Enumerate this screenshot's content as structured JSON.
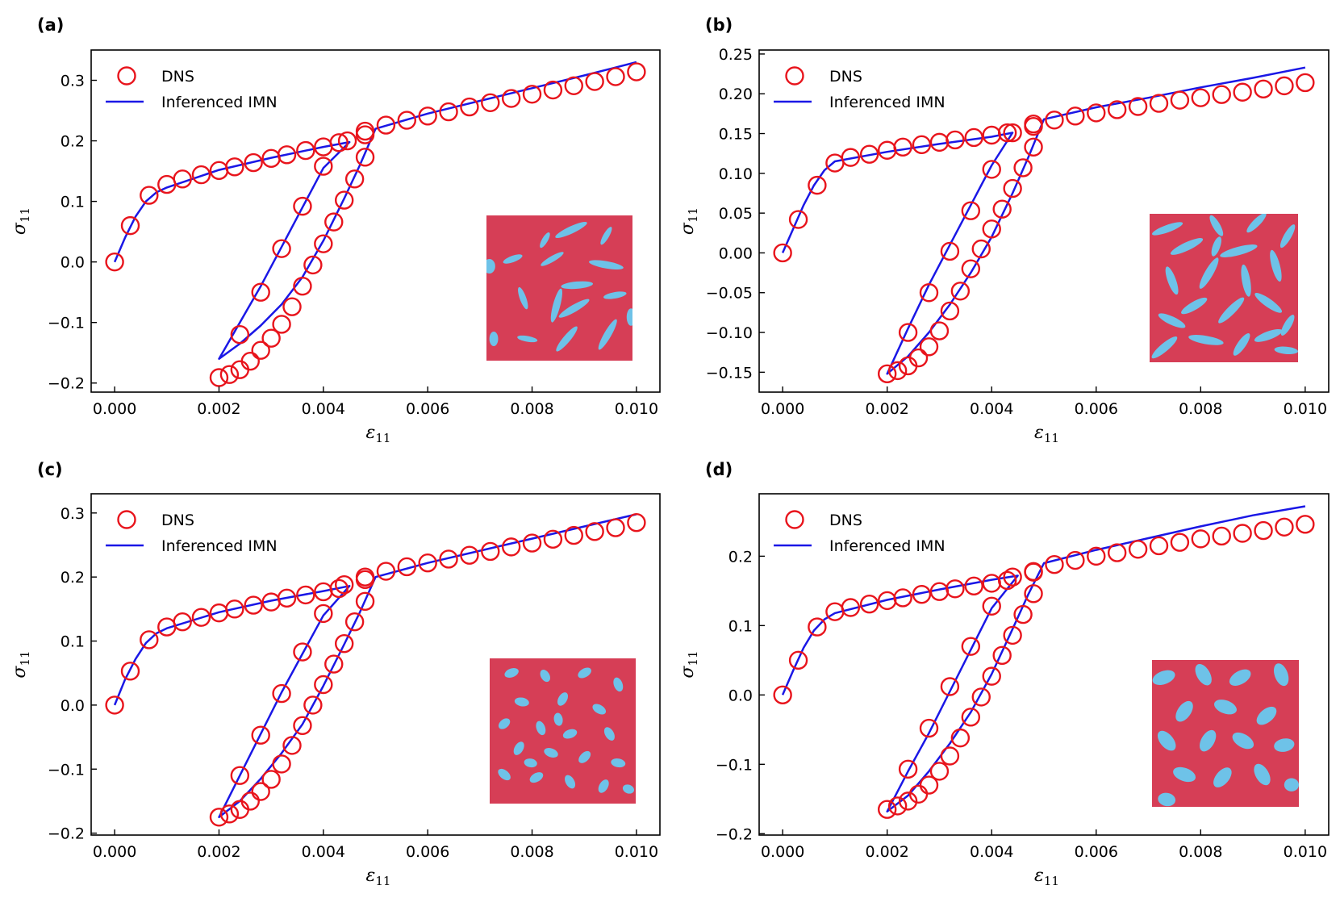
{
  "figure": {
    "colors": {
      "dns": "#e8141c",
      "imn": "#1a17e6",
      "matrix": "#d63e56",
      "inclusion": "#6ec2e8"
    }
  },
  "chart_data": [
    {
      "panel_label": "(a)",
      "type": "line",
      "xlabel": "ε",
      "xlabel_sub": "11",
      "ylabel": "σ",
      "ylabel_sub": "11",
      "xlim": [
        -0.00045,
        0.01045
      ],
      "ylim": [
        -0.215,
        0.35
      ],
      "xticks": [
        0,
        0.002,
        0.004,
        0.006,
        0.008,
        0.01
      ],
      "xtick_labels": [
        "0.000",
        "0.002",
        "0.004",
        "0.006",
        "0.008",
        "0.010"
      ],
      "yticks": [
        -0.2,
        -0.1,
        0.0,
        0.1,
        0.2,
        0.3
      ],
      "ytick_labels": [
        "−0.2",
        "−0.1",
        "0.0",
        "0.1",
        "0.2",
        "0.3"
      ],
      "legend": {
        "position": "top-left",
        "entries": [
          "DNS",
          "Inferenced IMN"
        ]
      },
      "inset": "sparse elongated ellipses",
      "series": [
        {
          "name": "DNS",
          "style": "open-circle",
          "x": [
            0,
            0.0003,
            0.00066,
            0.001,
            0.0013,
            0.00166,
            0.002,
            0.0023,
            0.00266,
            0.003,
            0.0033,
            0.00366,
            0.004,
            0.0043,
            0.0048,
            0.004,
            0.0036,
            0.0032,
            0.0028,
            0.0024,
            0.002,
            0.0022,
            0.0024,
            0.0026,
            0.0028,
            0.003,
            0.0032,
            0.0034,
            0.0036,
            0.0038,
            0.004,
            0.0042,
            0.0044,
            0.0046,
            0.0048,
            0.00446,
            0.0048,
            0.0052,
            0.0056,
            0.006,
            0.0064,
            0.0068,
            0.0072,
            0.0076,
            0.008,
            0.0084,
            0.0088,
            0.0092,
            0.0096,
            0.01
          ],
          "y": [
            0,
            0.06,
            0.11,
            0.128,
            0.137,
            0.144,
            0.151,
            0.157,
            0.164,
            0.171,
            0.177,
            0.184,
            0.19,
            0.197,
            0.21,
            0.158,
            0.092,
            0.022,
            -0.05,
            -0.12,
            -0.191,
            -0.186,
            -0.178,
            -0.164,
            -0.146,
            -0.126,
            -0.103,
            -0.074,
            -0.04,
            -0.005,
            0.03,
            0.066,
            0.102,
            0.137,
            0.173,
            0.2,
            0.216,
            0.226,
            0.234,
            0.241,
            0.248,
            0.256,
            0.263,
            0.27,
            0.277,
            0.284,
            0.291,
            0.298,
            0.306,
            0.314
          ]
        },
        {
          "name": "Inferenced IMN",
          "style": "line",
          "x": [
            0,
            0.0002,
            0.0004,
            0.0006,
            0.0008,
            0.001,
            0.002,
            0.003,
            0.004,
            0.0045,
            0.004,
            0.0036,
            0.0032,
            0.0028,
            0.0024,
            0.002,
            0.0024,
            0.0028,
            0.0032,
            0.0036,
            0.004,
            0.0044,
            0.0047,
            0.005,
            0.006,
            0.007,
            0.008,
            0.009,
            0.01
          ],
          "y": [
            0,
            0.04,
            0.075,
            0.1,
            0.115,
            0.123,
            0.152,
            0.172,
            0.19,
            0.198,
            0.155,
            0.09,
            0.025,
            -0.04,
            -0.1,
            -0.16,
            -0.135,
            -0.105,
            -0.07,
            -0.025,
            0.035,
            0.105,
            0.16,
            0.22,
            0.245,
            0.266,
            0.287,
            0.308,
            0.33
          ]
        }
      ]
    },
    {
      "panel_label": "(b)",
      "type": "line",
      "xlabel": "ε",
      "xlabel_sub": "11",
      "ylabel": "σ",
      "ylabel_sub": "11",
      "xlim": [
        -0.00045,
        0.01045
      ],
      "ylim": [
        -0.175,
        0.255
      ],
      "xticks": [
        0,
        0.002,
        0.004,
        0.006,
        0.008,
        0.01
      ],
      "xtick_labels": [
        "0.000",
        "0.002",
        "0.004",
        "0.006",
        "0.008",
        "0.010"
      ],
      "yticks": [
        -0.15,
        -0.1,
        -0.05,
        0.0,
        0.05,
        0.1,
        0.15,
        0.2,
        0.25
      ],
      "ytick_labels": [
        "−0.15",
        "−0.10",
        "−0.05",
        "0.00",
        "0.05",
        "0.10",
        "0.15",
        "0.20",
        "0.25"
      ],
      "legend": {
        "position": "top-left",
        "entries": [
          "DNS",
          "Inferenced IMN"
        ]
      },
      "inset": "dense elongated ellipses",
      "series": [
        {
          "name": "DNS",
          "style": "open-circle",
          "x": [
            0,
            0.0003,
            0.00066,
            0.001,
            0.0013,
            0.00166,
            0.002,
            0.0023,
            0.00266,
            0.003,
            0.0033,
            0.00366,
            0.004,
            0.0043,
            0.0048,
            0.004,
            0.0036,
            0.0032,
            0.0028,
            0.0024,
            0.002,
            0.0022,
            0.0024,
            0.0026,
            0.0028,
            0.003,
            0.0032,
            0.0034,
            0.0036,
            0.0038,
            0.004,
            0.0042,
            0.0044,
            0.0046,
            0.0048,
            0.0044,
            0.0048,
            0.0052,
            0.0056,
            0.006,
            0.0064,
            0.0068,
            0.0072,
            0.0076,
            0.008,
            0.0084,
            0.0088,
            0.0092,
            0.0096,
            0.01
          ],
          "y": [
            0,
            0.042,
            0.085,
            0.113,
            0.12,
            0.124,
            0.129,
            0.133,
            0.136,
            0.139,
            0.142,
            0.145,
            0.148,
            0.151,
            0.162,
            0.105,
            0.053,
            0.002,
            -0.05,
            -0.1,
            -0.152,
            -0.148,
            -0.142,
            -0.132,
            -0.118,
            -0.098,
            -0.073,
            -0.048,
            -0.02,
            0.005,
            0.03,
            0.055,
            0.081,
            0.107,
            0.133,
            0.151,
            0.159,
            0.167,
            0.172,
            0.176,
            0.18,
            0.184,
            0.188,
            0.192,
            0.195,
            0.199,
            0.202,
            0.206,
            0.21,
            0.214
          ]
        },
        {
          "name": "Inferenced IMN",
          "style": "line",
          "x": [
            0,
            0.0002,
            0.0004,
            0.0006,
            0.0008,
            0.001,
            0.002,
            0.003,
            0.004,
            0.0044,
            0.004,
            0.0036,
            0.0032,
            0.0028,
            0.0024,
            0.002,
            0.0024,
            0.0028,
            0.0032,
            0.0036,
            0.004,
            0.0044,
            0.0047,
            0.005,
            0.006,
            0.007,
            0.008,
            0.009,
            0.01
          ],
          "y": [
            0,
            0.03,
            0.06,
            0.085,
            0.104,
            0.115,
            0.127,
            0.137,
            0.146,
            0.151,
            0.11,
            0.06,
            0.01,
            -0.04,
            -0.095,
            -0.152,
            -0.13,
            -0.1,
            -0.065,
            -0.025,
            0.02,
            0.075,
            0.12,
            0.168,
            0.183,
            0.195,
            0.208,
            0.22,
            0.233
          ]
        }
      ]
    },
    {
      "panel_label": "(c)",
      "type": "line",
      "xlabel": "ε",
      "xlabel_sub": "11",
      "ylabel": "σ",
      "ylabel_sub": "11",
      "xlim": [
        -0.00045,
        0.01045
      ],
      "ylim": [
        -0.203,
        0.33
      ],
      "xticks": [
        0,
        0.002,
        0.004,
        0.006,
        0.008,
        0.01
      ],
      "xtick_labels": [
        "0.000",
        "0.002",
        "0.004",
        "0.006",
        "0.008",
        "0.010"
      ],
      "yticks": [
        -0.2,
        -0.1,
        0.0,
        0.1,
        0.2,
        0.3
      ],
      "ytick_labels": [
        "−0.2",
        "−0.1",
        "0.0",
        "0.1",
        "0.2",
        "0.3"
      ],
      "legend": {
        "position": "top-left",
        "entries": [
          "DNS",
          "Inferenced IMN"
        ]
      },
      "inset": "many small ellipses",
      "series": [
        {
          "name": "DNS",
          "style": "open-circle",
          "x": [
            0,
            0.0003,
            0.00066,
            0.001,
            0.0013,
            0.00166,
            0.002,
            0.0023,
            0.00266,
            0.003,
            0.0033,
            0.00366,
            0.004,
            0.0043,
            0.0048,
            0.004,
            0.0036,
            0.0032,
            0.0028,
            0.0024,
            0.002,
            0.0022,
            0.0024,
            0.0026,
            0.0028,
            0.003,
            0.0032,
            0.0034,
            0.0036,
            0.0038,
            0.004,
            0.0042,
            0.0044,
            0.0046,
            0.0048,
            0.0044,
            0.0048,
            0.0052,
            0.0056,
            0.006,
            0.0064,
            0.0068,
            0.0072,
            0.0076,
            0.008,
            0.0084,
            0.0088,
            0.0092,
            0.0096,
            0.01
          ],
          "y": [
            0,
            0.053,
            0.102,
            0.122,
            0.13,
            0.137,
            0.144,
            0.15,
            0.156,
            0.161,
            0.167,
            0.172,
            0.177,
            0.182,
            0.2,
            0.143,
            0.083,
            0.018,
            -0.047,
            -0.11,
            -0.175,
            -0.17,
            -0.163,
            -0.15,
            -0.135,
            -0.116,
            -0.092,
            -0.063,
            -0.032,
            0.0,
            0.032,
            0.064,
            0.096,
            0.13,
            0.162,
            0.188,
            0.196,
            0.209,
            0.216,
            0.222,
            0.228,
            0.234,
            0.24,
            0.247,
            0.253,
            0.259,
            0.265,
            0.271,
            0.277,
            0.285
          ]
        },
        {
          "name": "Inferenced IMN",
          "style": "line",
          "x": [
            0,
            0.0002,
            0.0004,
            0.0006,
            0.0008,
            0.001,
            0.002,
            0.003,
            0.004,
            0.0045,
            0.004,
            0.0036,
            0.0032,
            0.0028,
            0.0024,
            0.002,
            0.0024,
            0.0028,
            0.0032,
            0.0036,
            0.004,
            0.0044,
            0.0047,
            0.005,
            0.006,
            0.007,
            0.008,
            0.009,
            0.01
          ],
          "y": [
            0,
            0.04,
            0.072,
            0.097,
            0.112,
            0.12,
            0.145,
            0.163,
            0.178,
            0.186,
            0.14,
            0.08,
            0.02,
            -0.045,
            -0.11,
            -0.175,
            -0.15,
            -0.115,
            -0.075,
            -0.03,
            0.03,
            0.095,
            0.145,
            0.2,
            0.222,
            0.241,
            0.26,
            0.279,
            0.298
          ]
        }
      ]
    },
    {
      "panel_label": "(d)",
      "type": "line",
      "xlabel": "ε",
      "xlabel_sub": "11",
      "ylabel": "σ",
      "ylabel_sub": "11",
      "xlim": [
        -0.00045,
        0.01045
      ],
      "ylim": [
        -0.202,
        0.29
      ],
      "xticks": [
        0,
        0.002,
        0.004,
        0.006,
        0.008,
        0.01
      ],
      "xtick_labels": [
        "0.000",
        "0.002",
        "0.004",
        "0.006",
        "0.008",
        "0.010"
      ],
      "yticks": [
        -0.2,
        -0.1,
        0.0,
        0.1,
        0.2
      ],
      "ytick_labels": [
        "−0.2",
        "−0.1",
        "0.0",
        "0.1",
        "0.2"
      ],
      "legend": {
        "position": "top-left",
        "entries": [
          "DNS",
          "Inferenced IMN"
        ]
      },
      "inset": "large ellipses",
      "series": [
        {
          "name": "DNS",
          "style": "open-circle",
          "x": [
            0,
            0.0003,
            0.00066,
            0.001,
            0.0013,
            0.00166,
            0.002,
            0.0023,
            0.00266,
            0.003,
            0.0033,
            0.00366,
            0.004,
            0.0043,
            0.0048,
            0.004,
            0.0036,
            0.0032,
            0.0028,
            0.0024,
            0.002,
            0.0022,
            0.0024,
            0.0026,
            0.0028,
            0.003,
            0.0032,
            0.0034,
            0.0036,
            0.0038,
            0.004,
            0.0042,
            0.0044,
            0.0046,
            0.0048,
            0.0044,
            0.0048,
            0.0052,
            0.0056,
            0.006,
            0.0064,
            0.0068,
            0.0072,
            0.0076,
            0.008,
            0.0084,
            0.0088,
            0.0092,
            0.0096,
            0.01
          ],
          "y": [
            0,
            0.05,
            0.098,
            0.12,
            0.126,
            0.131,
            0.136,
            0.14,
            0.145,
            0.149,
            0.153,
            0.157,
            0.161,
            0.165,
            0.178,
            0.128,
            0.07,
            0.012,
            -0.048,
            -0.107,
            -0.165,
            -0.16,
            -0.153,
            -0.143,
            -0.13,
            -0.11,
            -0.088,
            -0.062,
            -0.032,
            -0.003,
            0.027,
            0.057,
            0.086,
            0.116,
            0.146,
            0.17,
            0.177,
            0.188,
            0.194,
            0.2,
            0.205,
            0.21,
            0.215,
            0.22,
            0.225,
            0.229,
            0.233,
            0.237,
            0.242,
            0.246
          ]
        },
        {
          "name": "Inferenced IMN",
          "style": "line",
          "x": [
            0,
            0.0002,
            0.0004,
            0.0006,
            0.0008,
            0.001,
            0.002,
            0.003,
            0.004,
            0.0045,
            0.004,
            0.0036,
            0.0032,
            0.0028,
            0.0024,
            0.002,
            0.0024,
            0.0028,
            0.0032,
            0.0036,
            0.004,
            0.0044,
            0.0047,
            0.005,
            0.006,
            0.007,
            0.008,
            0.009,
            0.01
          ],
          "y": [
            0,
            0.035,
            0.068,
            0.093,
            0.109,
            0.118,
            0.137,
            0.152,
            0.166,
            0.172,
            0.125,
            0.065,
            0.005,
            -0.055,
            -0.11,
            -0.168,
            -0.145,
            -0.11,
            -0.07,
            -0.025,
            0.03,
            0.095,
            0.145,
            0.19,
            0.209,
            0.226,
            0.243,
            0.259,
            0.272
          ]
        }
      ]
    }
  ]
}
